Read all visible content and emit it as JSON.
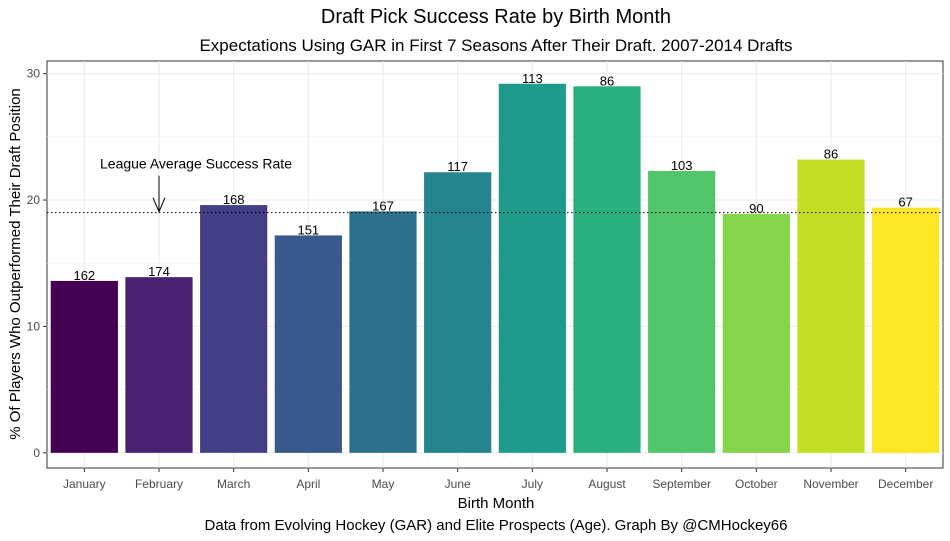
{
  "chart_data": {
    "type": "bar",
    "title": "Draft Pick Success Rate by Birth Month",
    "subtitle": "Expectations Using GAR in First 7 Seasons After Their Draft. 2007-2014 Drafts",
    "xlabel": "Birth Month",
    "ylabel": "% Of Players Who Outperformed Their Draft Position",
    "caption": "Data from Evolving Hockey (GAR) and Elite Prospects (Age). Graph By @CMHockey66",
    "categories": [
      "January",
      "February",
      "March",
      "April",
      "May",
      "June",
      "July",
      "August",
      "September",
      "October",
      "November",
      "December"
    ],
    "values": [
      13.6,
      13.9,
      19.6,
      17.2,
      19.1,
      22.2,
      29.2,
      29.0,
      22.3,
      18.9,
      23.2,
      19.4
    ],
    "labels": [
      "162",
      "174",
      "168",
      "151",
      "167",
      "117",
      "113",
      "86",
      "103",
      "90",
      "86",
      "67"
    ],
    "colors": [
      "#440154",
      "#482173",
      "#433e85",
      "#38598c",
      "#2d708e",
      "#25858e",
      "#1e9b8a",
      "#2ab07f",
      "#51c56a",
      "#85d54a",
      "#c2df23",
      "#fde725"
    ],
    "yticks": [
      0,
      10,
      20,
      30
    ],
    "ylim": [
      -1.2,
      31.0
    ],
    "reference_line": {
      "value": 19.0,
      "style": "dotted"
    },
    "annotation": {
      "text": "League Average Success Rate",
      "category": "February"
    },
    "grid": true
  }
}
